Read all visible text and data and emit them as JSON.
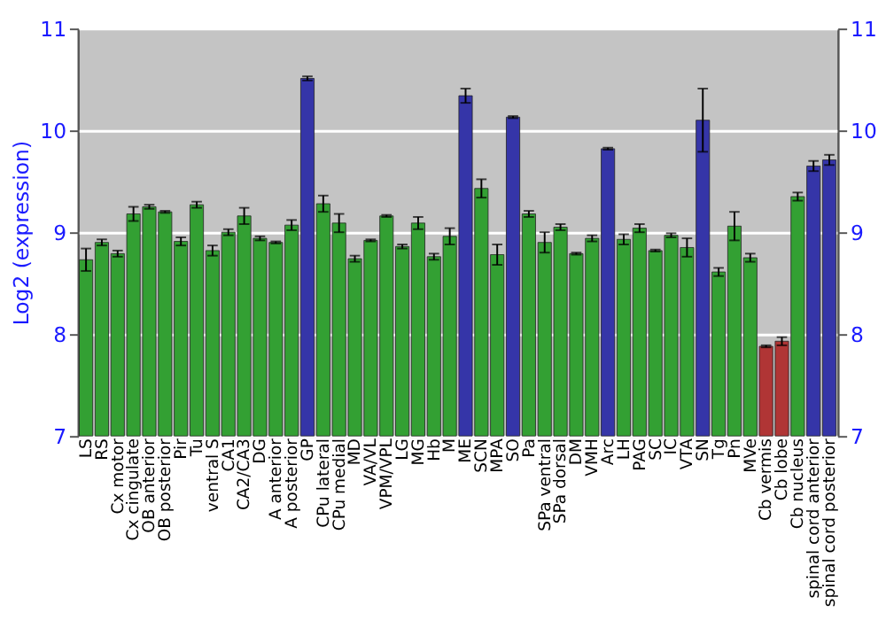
{
  "chart_data": {
    "type": "bar",
    "ylabel": "Log2 (expression)",
    "categories": [
      "LS",
      "RS",
      "Cx motor",
      "Cx cingulate",
      "OB anterior",
      "OB posterior",
      "Pir",
      "Tu",
      "ventral S",
      "CA1",
      "CA2/CA3",
      "DG",
      "A anterior",
      "A posterior",
      "GP",
      "CPu lateral",
      "CPu medial",
      "MD",
      "VA/VL",
      "VPM/VPL",
      "LG",
      "MG",
      "Hb",
      "M",
      "ME",
      "SCN",
      "MPA",
      "SO",
      "Pa",
      "SPa ventral",
      "SPa dorsal",
      "DM",
      "VMH",
      "Arc",
      "LH",
      "PAG",
      "SC",
      "IC",
      "VTA",
      "SN",
      "Tg",
      "Pn",
      "MVe",
      "Cb vermis",
      "Cb lobe",
      "Cb nucleus",
      "spinal cord anterior",
      "spinal cord posterior"
    ],
    "values": [
      8.73,
      8.9,
      8.79,
      9.18,
      9.25,
      9.2,
      8.91,
      9.27,
      8.82,
      9.0,
      9.16,
      8.94,
      8.9,
      9.07,
      10.51,
      9.28,
      9.09,
      8.74,
      8.92,
      9.16,
      8.86,
      9.09,
      8.76,
      8.96,
      10.34,
      9.43,
      8.78,
      10.13,
      9.18,
      8.9,
      9.05,
      8.79,
      8.94,
      9.82,
      8.93,
      9.04,
      8.82,
      8.97,
      8.85,
      10.1,
      8.61,
      9.06,
      8.75,
      7.88,
      7.93,
      9.35,
      9.65,
      9.71
    ],
    "errors": [
      0.11,
      0.03,
      0.03,
      0.07,
      0.02,
      0.01,
      0.04,
      0.03,
      0.05,
      0.03,
      0.08,
      0.02,
      0.01,
      0.05,
      0.02,
      0.08,
      0.09,
      0.03,
      0.01,
      0.01,
      0.02,
      0.06,
      0.03,
      0.08,
      0.07,
      0.09,
      0.1,
      0.01,
      0.03,
      0.1,
      0.03,
      0.01,
      0.03,
      0.01,
      0.05,
      0.04,
      0.01,
      0.02,
      0.09,
      0.31,
      0.04,
      0.14,
      0.04,
      0.01,
      0.04,
      0.04,
      0.05,
      0.05
    ],
    "colors": [
      "#33a033",
      "#33a033",
      "#33a033",
      "#33a033",
      "#33a033",
      "#33a033",
      "#33a033",
      "#33a033",
      "#33a033",
      "#33a033",
      "#33a033",
      "#33a033",
      "#33a033",
      "#33a033",
      "#3535a8",
      "#33a033",
      "#33a033",
      "#33a033",
      "#33a033",
      "#33a033",
      "#33a033",
      "#33a033",
      "#33a033",
      "#33a033",
      "#3535a8",
      "#33a033",
      "#33a033",
      "#3535a8",
      "#33a033",
      "#33a033",
      "#33a033",
      "#33a033",
      "#33a033",
      "#3535a8",
      "#33a033",
      "#33a033",
      "#33a033",
      "#33a033",
      "#33a033",
      "#3535a8",
      "#33a033",
      "#33a033",
      "#33a033",
      "#b03535",
      "#b03535",
      "#33a033",
      "#3535a8",
      "#3535a8"
    ],
    "ylim": [
      7,
      11
    ],
    "yticks": [
      7,
      8,
      9,
      10,
      11
    ],
    "y2lim": [
      7,
      11
    ],
    "y2ticks": [
      7,
      8,
      9,
      10,
      11
    ],
    "grid": "y"
  }
}
